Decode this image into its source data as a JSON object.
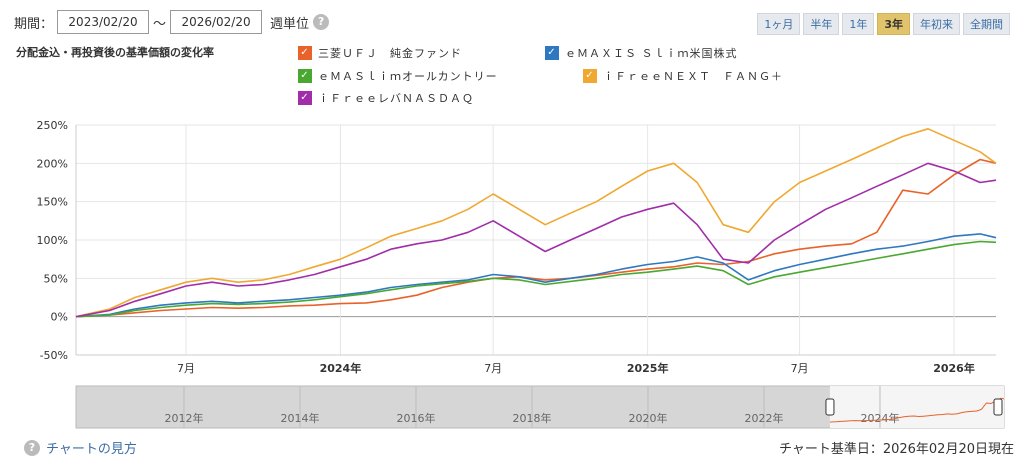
{
  "period": {
    "label": "期間：",
    "from": "2023/02/20",
    "tilde": "～",
    "to": "2026/02/20",
    "unit": "週単位",
    "help": "?"
  },
  "period_buttons": [
    {
      "label": "1ヶ月",
      "active": false
    },
    {
      "label": "半年",
      "active": false
    },
    {
      "label": "1年",
      "active": false
    },
    {
      "label": "3年",
      "active": true
    },
    {
      "label": "年初来",
      "active": false
    },
    {
      "label": "全期間",
      "active": false
    }
  ],
  "chart_heading": "分配金込・再投資後の基準価額の変化率",
  "footer": {
    "help_link": "チャートの見方",
    "basis": "チャート基準日：2026年02月20日現在",
    "help_icon": "?"
  },
  "check_mark": "✓",
  "colors": {
    "accent": "#3b6ea5",
    "active_button": "#e0c36a",
    "grid": "#e6e6e6"
  },
  "chart_data": {
    "type": "line",
    "title": "分配金込・再投資後の基準価額の変化率",
    "ylim": [
      -50,
      250
    ],
    "yticks": [
      -50,
      0,
      50,
      100,
      150,
      200,
      250
    ],
    "ytick_labels": [
      "-50%",
      "0%",
      "50%",
      "100%",
      "150%",
      "200%",
      "250%"
    ],
    "xlim": [
      "2023-02-20",
      "2026-02-20"
    ],
    "xticks": [
      {
        "date": "2023-07-01",
        "label": "7月",
        "bold": false
      },
      {
        "date": "2024-01-01",
        "label": "2024年",
        "bold": true
      },
      {
        "date": "2024-07-01",
        "label": "7月",
        "bold": false
      },
      {
        "date": "2025-01-01",
        "label": "2025年",
        "bold": true
      },
      {
        "date": "2025-07-01",
        "label": "7月",
        "bold": false
      },
      {
        "date": "2026-01-01",
        "label": "2026年",
        "bold": true
      }
    ],
    "grid": true,
    "legend_position": "top",
    "x": [
      "2023-02-20",
      "2023-04-01",
      "2023-05-01",
      "2023-06-01",
      "2023-07-01",
      "2023-08-01",
      "2023-09-01",
      "2023-10-01",
      "2023-11-01",
      "2023-12-01",
      "2024-01-01",
      "2024-02-01",
      "2024-03-01",
      "2024-04-01",
      "2024-05-01",
      "2024-06-01",
      "2024-07-01",
      "2024-08-01",
      "2024-09-01",
      "2024-10-01",
      "2024-11-01",
      "2024-12-01",
      "2025-01-01",
      "2025-02-01",
      "2025-03-01",
      "2025-04-01",
      "2025-05-01",
      "2025-06-01",
      "2025-07-01",
      "2025-08-01",
      "2025-09-01",
      "2025-10-01",
      "2025-11-01",
      "2025-12-01",
      "2026-01-01",
      "2026-02-01",
      "2026-02-20"
    ],
    "series": [
      {
        "name": "三菱ＵＦＪ　純金ファンド",
        "color": "#e8622a",
        "values": [
          0,
          2,
          5,
          8,
          10,
          12,
          11,
          12,
          14,
          15,
          17,
          18,
          22,
          28,
          38,
          45,
          50,
          52,
          48,
          50,
          54,
          58,
          62,
          65,
          70,
          68,
          72,
          82,
          88,
          92,
          95,
          110,
          165,
          160,
          185,
          205,
          200
        ]
      },
      {
        "name": "ｅＭＡＸＩＳ Ｓｌｉｍ米国株式",
        "color": "#2d78c0",
        "values": [
          0,
          3,
          10,
          15,
          18,
          20,
          18,
          20,
          22,
          25,
          28,
          32,
          38,
          42,
          45,
          48,
          55,
          52,
          45,
          50,
          55,
          62,
          68,
          72,
          78,
          70,
          48,
          60,
          68,
          75,
          82,
          88,
          92,
          98,
          105,
          108,
          103
        ]
      },
      {
        "name": "ｅＭＡＳｌｉｍオールカントリー",
        "color": "#4aa832",
        "values": [
          0,
          2,
          8,
          12,
          15,
          17,
          16,
          17,
          19,
          22,
          26,
          30,
          35,
          40,
          43,
          46,
          50,
          48,
          42,
          46,
          50,
          55,
          58,
          62,
          66,
          60,
          42,
          52,
          58,
          64,
          70,
          76,
          82,
          88,
          94,
          98,
          97
        ]
      },
      {
        "name": "ｉＦｒｅｅＮＥＸＴ　ＦＡＮＧ＋",
        "color": "#f0a830",
        "values": [
          0,
          10,
          25,
          35,
          45,
          50,
          45,
          48,
          55,
          65,
          75,
          90,
          105,
          115,
          125,
          140,
          160,
          140,
          120,
          135,
          150,
          170,
          190,
          200,
          175,
          120,
          110,
          150,
          175,
          190,
          205,
          220,
          235,
          245,
          230,
          215,
          200
        ]
      },
      {
        "name": "ｉＦｒｅｅレバＮＡＳＤＡＱ",
        "color": "#a02ea8",
        "values": [
          0,
          8,
          20,
          30,
          40,
          45,
          40,
          42,
          48,
          55,
          65,
          75,
          88,
          95,
          100,
          110,
          125,
          105,
          85,
          100,
          115,
          130,
          140,
          148,
          120,
          75,
          70,
          100,
          120,
          140,
          155,
          170,
          185,
          200,
          190,
          175,
          178
        ]
      }
    ],
    "navigator": {
      "xlim": [
        "2010-02-20",
        "2026-02-20"
      ],
      "year_ticks": [
        "2012年",
        "2014年",
        "2016年",
        "2018年",
        "2020年",
        "2022年",
        "2024年"
      ],
      "year_tick_dates": [
        "2012-01-01",
        "2014-01-01",
        "2016-01-01",
        "2018-01-01",
        "2020-01-01",
        "2022-01-01",
        "2024-01-01"
      ],
      "selected_range": [
        "2023-02-20",
        "2026-02-20"
      ]
    }
  }
}
